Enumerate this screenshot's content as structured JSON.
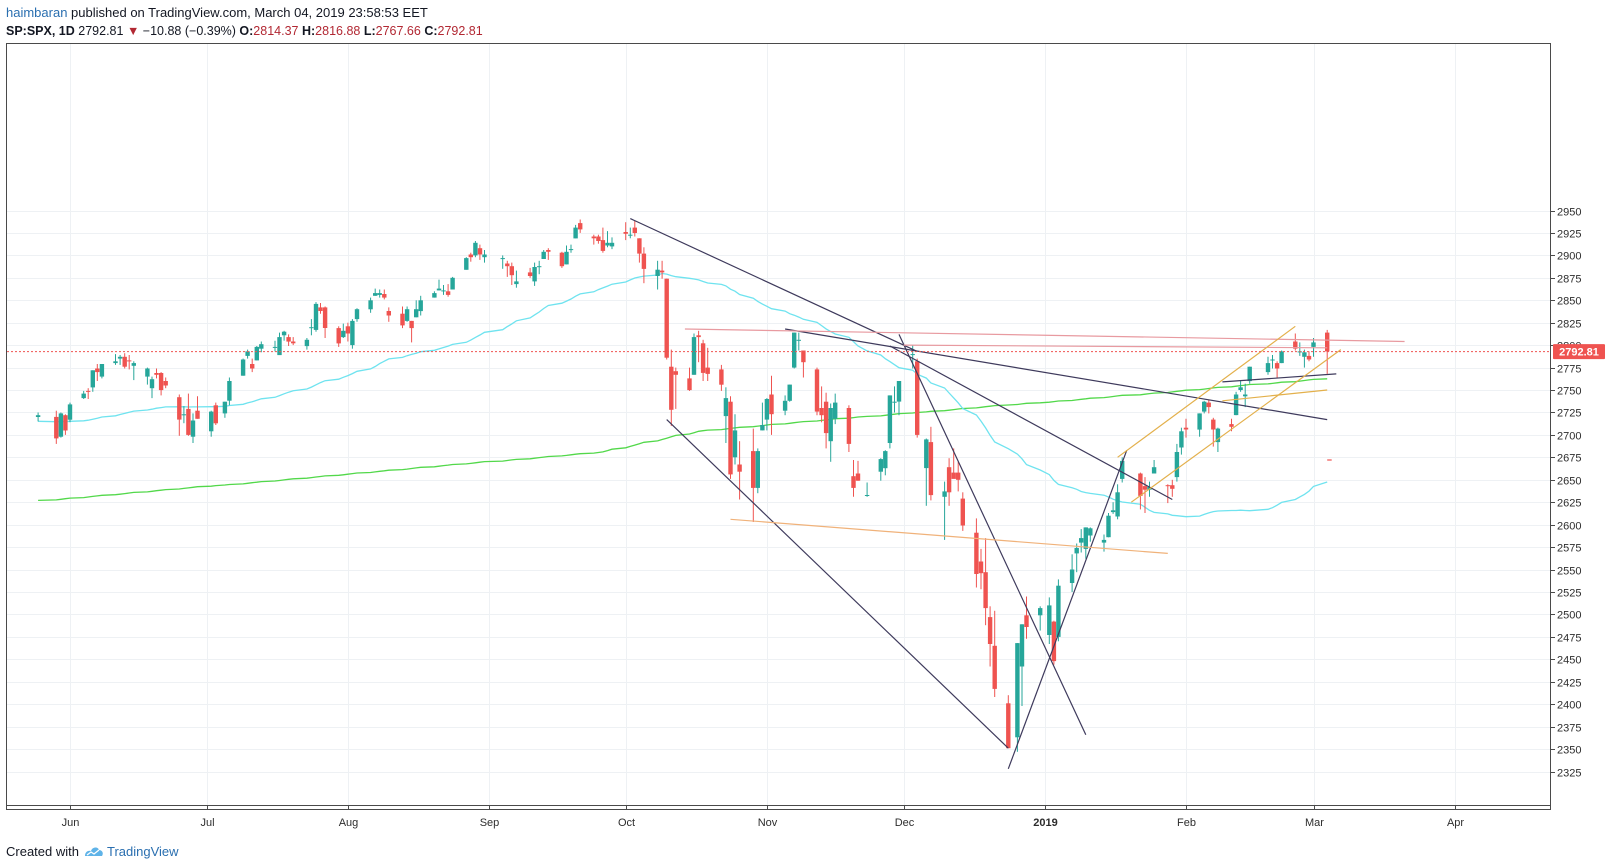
{
  "header": {
    "user": "haimbaran",
    "published": " published on TradingView.com, March 04, 2019 23:58:53 EET",
    "symbol": "SP:SPX, 1D",
    "last": "2792.81",
    "change": "−10.88 (−0.39%)",
    "o_label": "O:",
    "o_value": "2814.37",
    "h_label": "H:",
    "h_value": "2816.88",
    "l_label": "L:",
    "l_value": "2767.66",
    "c_label": "C:",
    "c_value": "2792.81"
  },
  "footer": {
    "created_with": "Created with",
    "brand": "TradingView"
  },
  "price_tag": "2792.81",
  "colors": {
    "up": "#26a69a",
    "down": "#ef5350",
    "ma50": "#6fe3ef",
    "ma200": "#52d84a",
    "trend": "#3e3a5c",
    "resistance": "#e89aa0",
    "support": "#f0b27a",
    "channel": "#e3b04b"
  },
  "chart_data": {
    "type": "candlestick",
    "y_ticks": [
      2325,
      2350,
      2375,
      2400,
      2425,
      2450,
      2475,
      2500,
      2525,
      2550,
      2575,
      2600,
      2625,
      2650,
      2675,
      2700,
      2725,
      2750,
      2775,
      2800,
      2825,
      2850,
      2875,
      2900,
      2925,
      2950
    ],
    "x_ticks": [
      "Jun",
      "Jul",
      "Aug",
      "Sep",
      "Oct",
      "Nov",
      "Dec",
      "2019",
      "Feb",
      "Mar",
      "Apr"
    ],
    "last_price": 2792.81,
    "candles": [
      [
        "2018-05-25",
        2720,
        2725,
        2715,
        2722
      ],
      [
        "2018-05-29",
        2720,
        2727,
        2690,
        2696
      ],
      [
        "2018-05-30",
        2698,
        2725,
        2697,
        2724
      ],
      [
        "2018-05-31",
        2722,
        2723,
        2700,
        2705
      ],
      [
        "2018-06-01",
        2717,
        2736,
        2714,
        2734
      ],
      [
        "2018-06-04",
        2741,
        2749,
        2740,
        2746
      ],
      [
        "2018-06-05",
        2749,
        2752,
        2740,
        2748
      ],
      [
        "2018-06-06",
        2753,
        2772,
        2748,
        2772
      ],
      [
        "2018-06-07",
        2774,
        2779,
        2760,
        2770
      ],
      [
        "2018-06-08",
        2765,
        2779,
        2763,
        2779
      ],
      [
        "2018-06-11",
        2780,
        2790,
        2778,
        2782
      ],
      [
        "2018-06-12",
        2785,
        2789,
        2778,
        2787
      ],
      [
        "2018-06-13",
        2787,
        2791,
        2774,
        2776
      ],
      [
        "2018-06-14",
        2783,
        2789,
        2773,
        2782
      ],
      [
        "2018-06-15",
        2777,
        2782,
        2761,
        2780
      ],
      [
        "2018-06-18",
        2765,
        2775,
        2756,
        2774
      ],
      [
        "2018-06-19",
        2752,
        2765,
        2741,
        2762
      ],
      [
        "2018-06-20",
        2769,
        2774,
        2763,
        2767
      ],
      [
        "2018-06-21",
        2769,
        2770,
        2744,
        2750
      ],
      [
        "2018-06-22",
        2760,
        2764,
        2752,
        2755
      ],
      [
        "2018-06-25",
        2742,
        2745,
        2699,
        2717
      ],
      [
        "2018-06-26",
        2722,
        2732,
        2713,
        2723
      ],
      [
        "2018-06-27",
        2729,
        2746,
        2699,
        2700
      ],
      [
        "2018-06-28",
        2698,
        2724,
        2691,
        2716
      ],
      [
        "2018-06-29",
        2727,
        2743,
        2718,
        2718
      ],
      [
        "2018-07-02",
        2704,
        2727,
        2698,
        2726
      ],
      [
        "2018-07-03",
        2733,
        2736,
        2711,
        2713
      ],
      [
        "2018-07-05",
        2724,
        2737,
        2719,
        2737
      ],
      [
        "2018-07-06",
        2738,
        2764,
        2733,
        2760
      ],
      [
        "2018-07-09",
        2766,
        2785,
        2766,
        2784
      ],
      [
        "2018-07-10",
        2788,
        2795,
        2785,
        2793
      ],
      [
        "2018-07-11",
        2779,
        2785,
        2770,
        2774
      ],
      [
        "2018-07-12",
        2783,
        2799,
        2783,
        2798
      ],
      [
        "2018-07-13",
        2796,
        2804,
        2792,
        2801
      ],
      [
        "2018-07-16",
        2798,
        2805,
        2793,
        2798
      ],
      [
        "2018-07-17",
        2789,
        2814,
        2789,
        2809
      ],
      [
        "2018-07-18",
        2811,
        2816,
        2805,
        2815
      ],
      [
        "2018-07-19",
        2809,
        2812,
        2799,
        2804
      ],
      [
        "2018-07-20",
        2804,
        2809,
        2800,
        2802
      ],
      [
        "2018-07-23",
        2799,
        2808,
        2795,
        2806
      ],
      [
        "2018-07-24",
        2820,
        2829,
        2811,
        2820
      ],
      [
        "2018-07-25",
        2817,
        2848,
        2815,
        2846
      ],
      [
        "2018-07-26",
        2842,
        2847,
        2835,
        2838
      ],
      [
        "2018-07-27",
        2842,
        2843,
        2808,
        2819
      ],
      [
        "2018-07-30",
        2819,
        2821,
        2798,
        2802
      ],
      [
        "2018-07-31",
        2809,
        2824,
        2808,
        2816
      ],
      [
        "2018-08-01",
        2821,
        2825,
        2804,
        2813
      ],
      [
        "2018-08-02",
        2800,
        2829,
        2796,
        2827
      ],
      [
        "2018-08-03",
        2829,
        2841,
        2826,
        2840
      ],
      [
        "2018-08-06",
        2840,
        2853,
        2836,
        2850
      ],
      [
        "2018-08-07",
        2855,
        2863,
        2855,
        2858
      ],
      [
        "2018-08-08",
        2856,
        2862,
        2853,
        2858
      ],
      [
        "2018-08-09",
        2857,
        2862,
        2851,
        2853
      ],
      [
        "2018-08-10",
        2838,
        2842,
        2826,
        2833
      ],
      [
        "2018-08-13",
        2835,
        2843,
        2819,
        2822
      ],
      [
        "2018-08-14",
        2827,
        2843,
        2826,
        2840
      ],
      [
        "2018-08-15",
        2827,
        2827,
        2803,
        2819
      ],
      [
        "2018-08-16",
        2831,
        2850,
        2831,
        2840
      ],
      [
        "2018-08-17",
        2838,
        2855,
        2833,
        2850
      ],
      [
        "2018-08-20",
        2853,
        2860,
        2853,
        2858
      ],
      [
        "2018-08-21",
        2861,
        2873,
        2861,
        2863
      ],
      [
        "2018-08-22",
        2860,
        2867,
        2856,
        2861
      ],
      [
        "2018-08-23",
        2860,
        2868,
        2854,
        2856
      ],
      [
        "2018-08-24",
        2862,
        2876,
        2862,
        2875
      ],
      [
        "2018-08-27",
        2884,
        2898,
        2884,
        2897
      ],
      [
        "2018-08-28",
        2901,
        2903,
        2893,
        2898
      ],
      [
        "2018-08-29",
        2900,
        2916,
        2898,
        2914
      ],
      [
        "2018-08-30",
        2908,
        2912,
        2895,
        2901
      ],
      [
        "2018-08-31",
        2898,
        2906,
        2892,
        2901
      ],
      [
        "2018-09-04",
        2896,
        2900,
        2885,
        2897
      ],
      [
        "2018-09-05",
        2891,
        2894,
        2876,
        2888
      ],
      [
        "2018-09-06",
        2888,
        2892,
        2867,
        2878
      ],
      [
        "2018-09-07",
        2868,
        2883,
        2864,
        2871
      ],
      [
        "2018-09-10",
        2881,
        2886,
        2875,
        2877
      ],
      [
        "2018-09-11",
        2871,
        2892,
        2866,
        2887
      ],
      [
        "2018-09-12",
        2888,
        2894,
        2879,
        2888
      ],
      [
        "2018-09-13",
        2896,
        2906,
        2896,
        2904
      ],
      [
        "2018-09-14",
        2906,
        2908,
        2895,
        2904
      ],
      [
        "2018-09-17",
        2903,
        2904,
        2886,
        2888
      ],
      [
        "2018-09-18",
        2890,
        2911,
        2890,
        2904
      ],
      [
        "2018-09-19",
        2906,
        2912,
        2903,
        2907
      ],
      [
        "2018-09-20",
        2919,
        2934,
        2919,
        2931
      ],
      [
        "2018-09-21",
        2936,
        2940,
        2925,
        2929
      ],
      [
        "2018-09-24",
        2921,
        2923,
        2912,
        2919
      ],
      [
        "2018-09-25",
        2921,
        2923,
        2913,
        2916
      ],
      [
        "2018-09-26",
        2917,
        2931,
        2903,
        2905
      ],
      [
        "2018-09-27",
        2911,
        2927,
        2909,
        2914
      ],
      [
        "2018-09-28",
        2910,
        2920,
        2907,
        2914
      ],
      [
        "2018-10-01",
        2926,
        2937,
        2917,
        2924
      ],
      [
        "2018-10-02",
        2923,
        2931,
        2919,
        2923
      ],
      [
        "2018-10-03",
        2931,
        2939,
        2921,
        2925
      ],
      [
        "2018-10-04",
        2919,
        2919,
        2892,
        2902
      ],
      [
        "2018-10-05",
        2902,
        2909,
        2869,
        2885
      ],
      [
        "2018-10-08",
        2877,
        2894,
        2862,
        2884
      ],
      [
        "2018-10-09",
        2883,
        2894,
        2874,
        2881
      ],
      [
        "2018-10-10",
        2874,
        2874,
        2784,
        2786
      ],
      [
        "2018-10-11",
        2776,
        2795,
        2710,
        2728
      ],
      [
        "2018-10-12",
        2771,
        2775,
        2729,
        2767
      ],
      [
        "2018-10-15",
        2763,
        2775,
        2749,
        2750
      ],
      [
        "2018-10-16",
        2767,
        2813,
        2767,
        2809
      ],
      [
        "2018-10-17",
        2811,
        2816,
        2781,
        2809
      ],
      [
        "2018-10-18",
        2802,
        2806,
        2760,
        2769
      ],
      [
        "2018-10-19",
        2775,
        2797,
        2760,
        2768
      ],
      [
        "2018-10-22",
        2773,
        2778,
        2749,
        2756
      ],
      [
        "2018-10-23",
        2721,
        2753,
        2691,
        2741
      ],
      [
        "2018-10-24",
        2737,
        2743,
        2651,
        2656
      ],
      [
        "2018-10-25",
        2675,
        2723,
        2667,
        2705
      ],
      [
        "2018-10-26",
        2667,
        2693,
        2628,
        2659
      ],
      [
        "2018-10-29",
        2682,
        2707,
        2603,
        2641
      ],
      [
        "2018-10-30",
        2641,
        2685,
        2635,
        2682
      ],
      [
        "2018-10-31",
        2705,
        2736,
        2705,
        2711
      ],
      [
        "2018-11-01",
        2717,
        2741,
        2705,
        2740
      ],
      [
        "2018-11-02",
        2745,
        2766,
        2700,
        2723
      ],
      [
        "2018-11-05",
        2727,
        2744,
        2722,
        2738
      ],
      [
        "2018-11-06",
        2738,
        2756,
        2737,
        2756
      ],
      [
        "2018-11-07",
        2775,
        2814,
        2774,
        2814
      ],
      [
        "2018-11-08",
        2806,
        2814,
        2794,
        2806
      ],
      [
        "2018-11-09",
        2794,
        2794,
        2764,
        2781
      ],
      [
        "2018-11-12",
        2773,
        2775,
        2722,
        2726
      ],
      [
        "2018-11-13",
        2730,
        2754,
        2714,
        2722
      ],
      [
        "2018-11-14",
        2737,
        2747,
        2685,
        2702
      ],
      [
        "2018-11-15",
        2693,
        2735,
        2670,
        2730
      ],
      [
        "2018-11-16",
        2718,
        2746,
        2712,
        2736
      ],
      [
        "2018-11-19",
        2730,
        2733,
        2681,
        2690
      ],
      [
        "2018-11-20",
        2654,
        2672,
        2631,
        2641
      ],
      [
        "2018-11-21",
        2657,
        2671,
        2649,
        2649
      ],
      [
        "2018-11-23",
        2633,
        2647,
        2631,
        2633
      ],
      [
        "2018-11-26",
        2659,
        2674,
        2649,
        2673
      ],
      [
        "2018-11-27",
        2663,
        2683,
        2655,
        2682
      ],
      [
        "2018-11-28",
        2691,
        2744,
        2685,
        2744
      ],
      [
        "2018-11-29",
        2736,
        2754,
        2725,
        2737
      ],
      [
        "2018-11-30",
        2737,
        2760,
        2722,
        2760
      ],
      [
        "2018-12-03",
        2790,
        2800,
        2774,
        2790
      ],
      [
        "2018-12-04",
        2782,
        2785,
        2697,
        2700
      ],
      [
        "2018-12-06",
        2663,
        2696,
        2621,
        2695
      ],
      [
        "2018-12-07",
        2692,
        2709,
        2627,
        2633
      ],
      [
        "2018-12-10",
        2631,
        2648,
        2583,
        2637
      ],
      [
        "2018-12-11",
        2664,
        2674,
        2621,
        2636
      ],
      [
        "2018-12-12",
        2658,
        2685,
        2652,
        2651
      ],
      [
        "2018-12-13",
        2658,
        2670,
        2637,
        2650
      ],
      [
        "2018-12-14",
        2629,
        2636,
        2593,
        2599
      ],
      [
        "2018-12-17",
        2591,
        2607,
        2530,
        2545
      ],
      [
        "2018-12-18",
        2559,
        2573,
        2528,
        2546
      ],
      [
        "2018-12-19",
        2547,
        2585,
        2488,
        2507
      ],
      [
        "2018-12-20",
        2497,
        2509,
        2442,
        2467
      ],
      [
        "2018-12-21",
        2465,
        2504,
        2408,
        2417
      ],
      [
        "2018-12-24",
        2401,
        2410,
        2351,
        2351
      ],
      [
        "2018-12-26",
        2363,
        2468,
        2347,
        2468
      ],
      [
        "2018-12-27",
        2442,
        2489,
        2398,
        2489
      ],
      [
        "2018-12-28",
        2499,
        2520,
        2473,
        2486
      ],
      [
        "2018-12-31",
        2499,
        2509,
        2482,
        2507
      ],
      [
        "2019-01-02",
        2477,
        2519,
        2467,
        2510
      ],
      [
        "2019-01-03",
        2492,
        2493,
        2444,
        2448
      ],
      [
        "2019-01-04",
        2475,
        2539,
        2470,
        2532
      ],
      [
        "2019-01-07",
        2535,
        2567,
        2525,
        2550
      ],
      [
        "2019-01-08",
        2568,
        2579,
        2547,
        2574
      ],
      [
        "2019-01-09",
        2580,
        2595,
        2569,
        2585
      ],
      [
        "2019-01-10",
        2573,
        2597,
        2562,
        2597
      ],
      [
        "2019-01-11",
        2588,
        2597,
        2581,
        2596
      ],
      [
        "2019-01-14",
        2580,
        2589,
        2570,
        2583
      ],
      [
        "2019-01-15",
        2586,
        2613,
        2586,
        2610
      ],
      [
        "2019-01-16",
        2614,
        2625,
        2612,
        2616
      ],
      [
        "2019-01-17",
        2609,
        2645,
        2606,
        2636
      ],
      [
        "2019-01-18",
        2651,
        2675,
        2647,
        2671
      ],
      [
        "2019-01-22",
        2657,
        2658,
        2617,
        2632
      ],
      [
        "2019-01-23",
        2643,
        2653,
        2613,
        2639
      ],
      [
        "2019-01-24",
        2639,
        2648,
        2631,
        2642
      ],
      [
        "2019-01-25",
        2657,
        2672,
        2657,
        2664
      ],
      [
        "2019-01-28",
        2644,
        2645,
        2624,
        2643
      ],
      [
        "2019-01-29",
        2644,
        2650,
        2631,
        2640
      ],
      [
        "2019-01-30",
        2653,
        2690,
        2648,
        2681
      ],
      [
        "2019-01-31",
        2686,
        2708,
        2678,
        2704
      ],
      [
        "2019-02-01",
        2708,
        2718,
        2697,
        2706
      ],
      [
        "2019-02-04",
        2706,
        2724,
        2698,
        2724
      ],
      [
        "2019-02-05",
        2726,
        2738,
        2724,
        2737
      ],
      [
        "2019-02-06",
        2736,
        2739,
        2724,
        2731
      ],
      [
        "2019-02-07",
        2717,
        2719,
        2687,
        2706
      ],
      [
        "2019-02-08",
        2692,
        2708,
        2681,
        2707
      ],
      [
        "2019-02-11",
        2712,
        2718,
        2704,
        2709
      ],
      [
        "2019-02-12",
        2722,
        2748,
        2722,
        2745
      ],
      [
        "2019-02-13",
        2750,
        2761,
        2748,
        2753
      ],
      [
        "2019-02-14",
        2743,
        2757,
        2731,
        2745
      ],
      [
        "2019-02-15",
        2760,
        2776,
        2757,
        2776
      ],
      [
        "2019-02-19",
        2770,
        2787,
        2767,
        2780
      ],
      [
        "2019-02-20",
        2784,
        2789,
        2774,
        2784
      ],
      [
        "2019-02-21",
        2780,
        2782,
        2764,
        2774
      ],
      [
        "2019-02-22",
        2780,
        2794,
        2780,
        2793
      ],
      [
        "2019-02-25",
        2804,
        2813,
        2794,
        2796
      ],
      [
        "2019-02-26",
        2792,
        2803,
        2788,
        2793
      ],
      [
        "2019-02-27",
        2787,
        2795,
        2775,
        2792
      ],
      [
        "2019-02-28",
        2788,
        2793,
        2782,
        2784
      ],
      [
        "2019-03-01",
        2798,
        2808,
        2787,
        2803
      ],
      [
        "2019-03-04",
        2814,
        2817,
        2768,
        2793
      ]
    ]
  }
}
